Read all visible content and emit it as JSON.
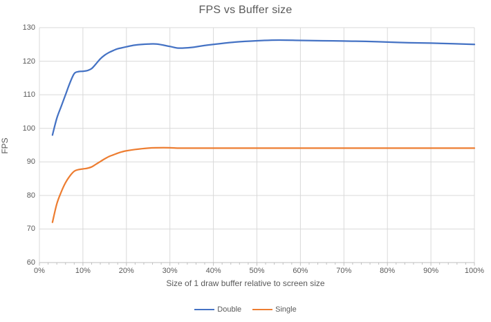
{
  "chart": {
    "title": "FPS vs Buffer size",
    "x_axis": {
      "title": "Size of 1 draw buffer relative to screen size",
      "tick_labels": [
        "0%",
        "10%",
        "20%",
        "30%",
        "40%",
        "50%",
        "60%",
        "70%",
        "80%",
        "90%",
        "100%"
      ],
      "tick_values": [
        0,
        10,
        20,
        30,
        40,
        50,
        60,
        70,
        80,
        90,
        100
      ],
      "minor_tick_step": 2
    },
    "y_axis": {
      "title": "FPS",
      "tick_labels": [
        "60",
        "70",
        "80",
        "90",
        "100",
        "110",
        "120",
        "130"
      ],
      "tick_values": [
        60,
        70,
        80,
        90,
        100,
        110,
        120,
        130
      ]
    },
    "colors": {
      "gridline": "#d9d9d9",
      "axis_line": "#bfbfbf",
      "text": "#595959"
    }
  },
  "chart_data": {
    "type": "line",
    "title": "FPS vs Buffer size",
    "xlabel": "Size of 1 draw buffer relative to screen size",
    "ylabel": "FPS",
    "xlim": [
      0,
      100
    ],
    "ylim": [
      60,
      130
    ],
    "grid": true,
    "legend_position": "bottom",
    "x_units": "percent",
    "x": [
      3,
      4,
      5,
      6,
      7,
      8,
      9,
      10,
      11,
      12,
      13,
      14,
      15,
      16,
      17,
      18,
      19,
      20,
      22,
      25,
      27,
      30,
      32,
      35,
      37,
      40,
      45,
      50,
      55,
      60,
      65,
      70,
      75,
      80,
      85,
      90,
      95,
      100
    ],
    "series": [
      {
        "name": "Double",
        "color": "#4472c4",
        "smooth": true,
        "values": [
          98,
          103,
          106.5,
          110,
          113.5,
          116.3,
          116.9,
          117,
          117.2,
          117.8,
          119.2,
          120.7,
          121.8,
          122.6,
          123.2,
          123.7,
          124,
          124.3,
          124.8,
          125.1,
          125.1,
          124.4,
          123.9,
          124.1,
          124.5,
          125,
          125.7,
          126.1,
          126.3,
          126.2,
          126.1,
          126,
          125.9,
          125.7,
          125.5,
          125.4,
          125.2,
          125
        ]
      },
      {
        "name": "Single",
        "color": "#ed7d31",
        "smooth": true,
        "values": [
          72,
          77.5,
          81,
          83.8,
          85.8,
          87.2,
          87.7,
          87.9,
          88.1,
          88.5,
          89.3,
          90.1,
          90.9,
          91.6,
          92.1,
          92.6,
          93,
          93.3,
          93.7,
          94.1,
          94.2,
          94.2,
          94.1,
          94.1,
          94.1,
          94.1,
          94.1,
          94.1,
          94.1,
          94.1,
          94.1,
          94.1,
          94.1,
          94.1,
          94.1,
          94.1,
          94.1,
          94.1
        ]
      }
    ]
  }
}
